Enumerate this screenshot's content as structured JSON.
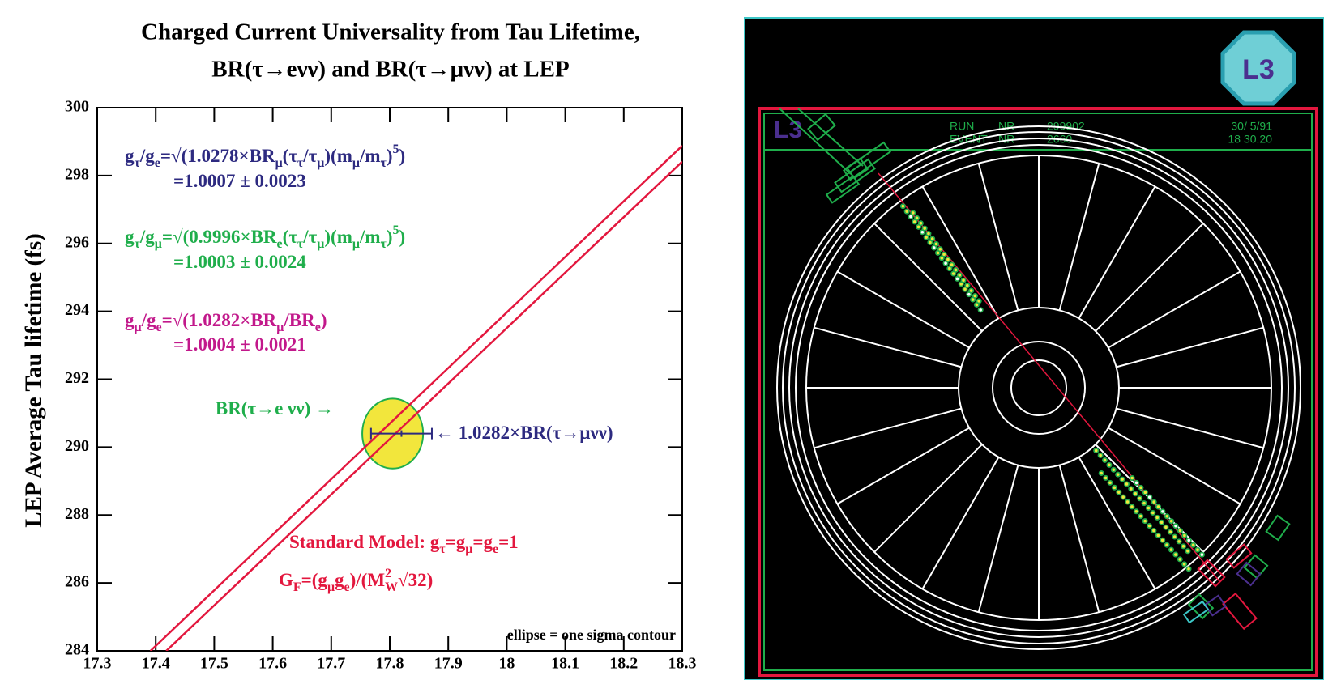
{
  "chart_data": {
    "type": "line",
    "title": [
      "Charged Current Universality from Tau Lifetime,",
      "BR(τ→eνν) and BR(τ→μνν) at LEP"
    ],
    "y_label": "LEP Average Tau lifetime (fs)",
    "xlim": [
      17.3,
      18.3
    ],
    "xticks": [
      17.3,
      17.4,
      17.5,
      17.6,
      17.7,
      17.8,
      17.9,
      18,
      18.1,
      18.2,
      18.3
    ],
    "ylim": [
      284,
      300
    ],
    "yticks": [
      284,
      286,
      288,
      290,
      292,
      294,
      296,
      298,
      300
    ],
    "series": [
      {
        "color": "#e3173e",
        "x": [
          17.391,
          18.3
        ],
        "values": [
          284,
          298.88
        ]
      },
      {
        "color": "#e3173e",
        "x": [
          17.418,
          18.3
        ],
        "values": [
          284,
          298.41
        ]
      }
    ],
    "ellipse": {
      "x": 17.805,
      "y": 290.4,
      "x_sigma": 0.052,
      "y_sigma": 1.03,
      "color": "#f2e63c",
      "stroke": "#1fae4b"
    },
    "error_bar": {
      "x": 17.82,
      "y": 290.4,
      "xerr": 0.052,
      "color": "#2d2a80"
    },
    "annotations": [
      {
        "color": "#2d2a80",
        "parts": [
          {
            "text": "g"
          },
          {
            "text": "τ",
            "sub": true
          },
          {
            "text": "/g"
          },
          {
            "text": "e",
            "sub": true
          },
          {
            "text": "=√(1.0278×BR"
          },
          {
            "text": "μ",
            "sub": true
          },
          {
            "text": "(τ"
          },
          {
            "text": "τ",
            "sub": true
          },
          {
            "text": "/τ"
          },
          {
            "text": "μ",
            "sub": true
          },
          {
            "text": ")(m"
          },
          {
            "text": "μ",
            "sub": true
          },
          {
            "text": "/m"
          },
          {
            "text": "τ",
            "sub": true
          },
          {
            "text": ")"
          },
          {
            "text": "5",
            "sup": true
          },
          {
            "text": ")"
          }
        ]
      },
      {
        "color": "#2d2a80",
        "parts": [
          {
            "text": "=1.0007 ± 0.0023"
          }
        ]
      },
      {
        "color": "#1fae4b",
        "parts": [
          {
            "text": "g"
          },
          {
            "text": "τ",
            "sub": true
          },
          {
            "text": "/g"
          },
          {
            "text": "μ",
            "sub": true
          },
          {
            "text": "=√(0.9996×BR"
          },
          {
            "text": "e",
            "sub": true
          },
          {
            "text": "(τ"
          },
          {
            "text": "τ",
            "sub": true
          },
          {
            "text": "/τ"
          },
          {
            "text": "μ",
            "sub": true
          },
          {
            "text": ")(m"
          },
          {
            "text": "μ",
            "sub": true
          },
          {
            "text": "/m"
          },
          {
            "text": "τ",
            "sub": true
          },
          {
            "text": ")"
          },
          {
            "text": "5",
            "sup": true
          },
          {
            "text": ")"
          }
        ]
      },
      {
        "color": "#1fae4b",
        "parts": [
          {
            "text": "=1.0003 ± 0.0024"
          }
        ]
      },
      {
        "color": "#c2188b",
        "parts": [
          {
            "text": "g"
          },
          {
            "text": "μ",
            "sub": true
          },
          {
            "text": "/g"
          },
          {
            "text": "e",
            "sub": true
          },
          {
            "text": "=√(1.0282×BR"
          },
          {
            "text": "μ",
            "sub": true
          },
          {
            "text": "/BR"
          },
          {
            "text": "e",
            "sub": true
          },
          {
            "text": ")"
          }
        ]
      },
      {
        "color": "#c2188b",
        "parts": [
          {
            "text": "=1.0004 ± 0.0021"
          }
        ]
      },
      {
        "color": "#1fae4b",
        "parts": [
          {
            "text": "BR(τ→e νν) →"
          }
        ]
      },
      {
        "color": "#2d2a80",
        "parts": [
          {
            "text": "← 1.0282×BR(τ→μνν)"
          }
        ]
      },
      {
        "color": "#e3173e",
        "parts": [
          {
            "text": "Standard Model: g"
          },
          {
            "text": "τ",
            "sub": true
          },
          {
            "text": "=g"
          },
          {
            "text": "μ",
            "sub": true
          },
          {
            "text": "=g"
          },
          {
            "text": "e",
            "sub": true
          },
          {
            "text": "=1"
          }
        ]
      },
      {
        "color": "#e3173e",
        "parts": [
          {
            "text": "G"
          },
          {
            "text": "F",
            "sub": true
          },
          {
            "text": "=(g"
          },
          {
            "text": "μ",
            "sub": true
          },
          {
            "text": "g"
          },
          {
            "text": "e",
            "sub": true
          },
          {
            "text": ")/(M"
          },
          {
            "text": "2",
            "sup": true
          },
          {
            "text": "W",
            "sub": true
          },
          {
            "text": "√32)"
          }
        ]
      },
      {
        "color": "#000000",
        "parts": [
          {
            "text": "ellipse = one sigma contour"
          }
        ]
      }
    ]
  },
  "event_display": {
    "logo": "L3",
    "detector_label": "L3",
    "run_label": "RUN",
    "run_nr_label": "NR",
    "run_number": "299902",
    "event_label": "EVENT",
    "event_nr_label": "NR",
    "event_number": "2660",
    "date": "30/ 5/91",
    "time": "18 30.20"
  }
}
